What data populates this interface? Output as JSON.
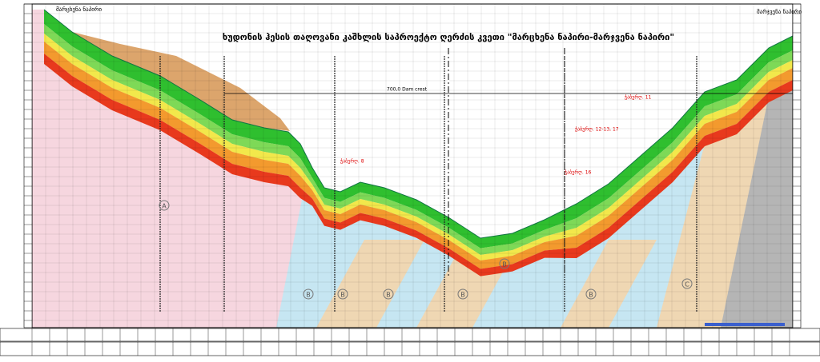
{
  "header": {
    "title": "ხუდონის ჰესის თაღოვანი კაშხლის საპროექტო ღერძის კვეთი \"მარცხენა ნაპირი-მარჯვენა ნაპირი\"",
    "left_bank": "მარცხენა ნაპირი",
    "right_bank": "მარჯვენა ნაპირი"
  },
  "annotations": {
    "dam_crest": "700,0 Dam crest",
    "boreholes": [
      "ჭაბურღ. 8",
      "ჭაბურღ. 11",
      "ჭაბურღ. 12-13, 17",
      "ჭაბურღ. 16"
    ]
  },
  "zones": [
    "A",
    "B",
    "B",
    "B",
    "B",
    "B",
    "B",
    "C"
  ]
}
